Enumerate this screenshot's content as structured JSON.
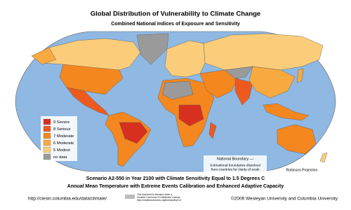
{
  "header": {
    "title": "Global Distribution of Vulnerability to Climate Change",
    "subtitle": "Combined National Indices of Exposure and Sensitivity"
  },
  "legend": {
    "items": [
      {
        "label": "9 Severe",
        "color": "#d7301f"
      },
      {
        "label": "8 Serious",
        "color": "#ee5a1e"
      },
      {
        "label": "7 Moderate",
        "color": "#f5871f"
      },
      {
        "label": "6 Moderate",
        "color": "#f8a940"
      },
      {
        "label": "5 Modest",
        "color": "#fbcd7a"
      },
      {
        "label": "no data",
        "color": "#9a9a9a"
      }
    ]
  },
  "notes": {
    "boundary": "National Boundary —",
    "subnational": "Subnational boundaries dissolved",
    "subnational2": "from countries for clarity of scale",
    "projection": "Robinson Projection"
  },
  "caption": {
    "line1": "Scenario A2-550 in Year 2100 with Climate Sensitivity Equal to 1.5 Degrees C",
    "line2": "Annual Mean Temperature with Extreme Events Calibration and Enhanced Adaptive Capacity"
  },
  "footer": {
    "url": "http://ciesin.columbia.edu/data/climate/",
    "license": [
      "This document is licensed under a",
      "Creative Commons 3.0 Attribution License.",
      "http://creativecommons.org/licenses/by/3.0/"
    ],
    "copyright": "©2006 Wesleyan University and Columbia University"
  }
}
